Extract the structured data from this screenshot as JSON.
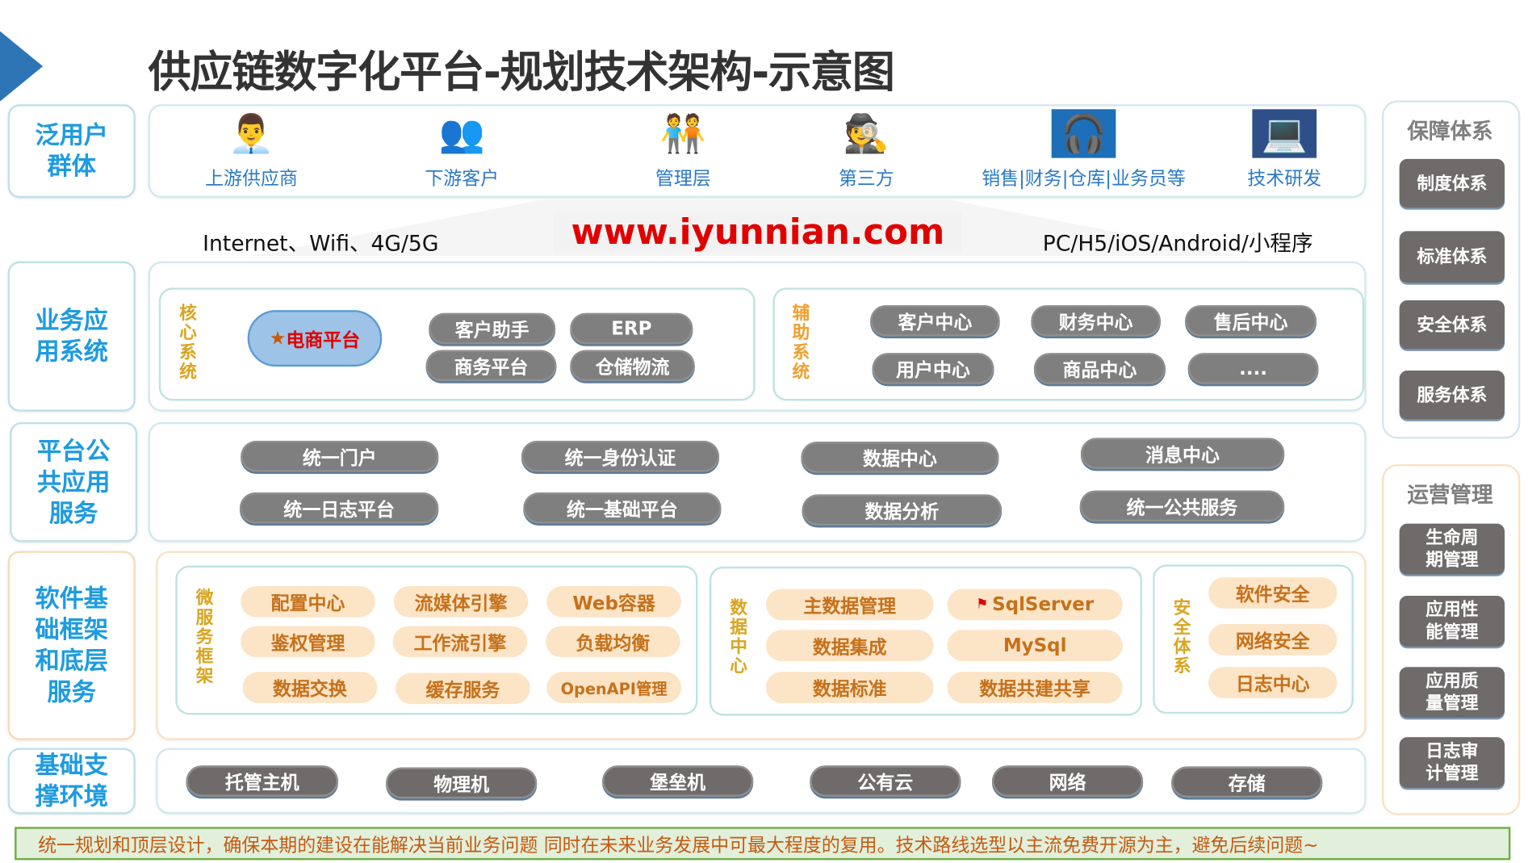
{
  "title": "供应链数字化平台-规划技术架构-示意图",
  "layers": {
    "users": "泛用户群体",
    "business": "业务应用系统",
    "platform": "平台公共应用服务",
    "software": "软件基础框架和底层服务",
    "infra": "基础支撑环境"
  },
  "users": [
    {
      "label": "上游供应商",
      "icon": "supplier-icon"
    },
    {
      "label": "下游客户",
      "icon": "customers-icon"
    },
    {
      "label": "管理层",
      "icon": "management-icon"
    },
    {
      "label": "第三方",
      "icon": "third-party-icon"
    },
    {
      "label": "销售|财务|仓库|业务员等",
      "icon": "staff-icon"
    },
    {
      "label": "技术研发",
      "icon": "tech-rd-icon"
    }
  ],
  "connect": {
    "network": "Internet、Wifi、4G/5G",
    "url": "www.iyunnian.com",
    "clients": "PC/H5/iOS/Android/小程序"
  },
  "core": {
    "label": "核心系统",
    "highlight": "电商平台",
    "items": [
      "客户助手",
      "ERP",
      "商务平台",
      "仓储物流"
    ]
  },
  "aux": {
    "label": "辅助系统",
    "items": [
      "客户中心",
      "财务中心",
      "售后中心",
      "用户中心",
      "商品中心",
      "...."
    ]
  },
  "platform": [
    "统一门户",
    "统一身份认证",
    "数据中心",
    "消息中心",
    "统一日志平台",
    "统一基础平台",
    "数据分析",
    "统一公共服务"
  ],
  "micro": {
    "label": "微服务框架",
    "items": [
      "配置中心",
      "流媒体引擎",
      "Web容器",
      "鉴权管理",
      "工作流引擎",
      "负载均衡",
      "数据交换",
      "缓存服务",
      "OpenAPI管理"
    ]
  },
  "datacenter": {
    "label": "数据中心",
    "items": [
      "主数据管理",
      "SqlServer",
      "数据集成",
      "MySql",
      "数据标准",
      "数据共建共享"
    ]
  },
  "security": {
    "label": "安全体系",
    "items": [
      "软件安全",
      "网络安全",
      "日志中心"
    ]
  },
  "infra": [
    "托管主机",
    "物理机",
    "堡垒机",
    "公有云",
    "网络",
    "存储"
  ],
  "guarantee": {
    "title": "保障体系",
    "items": [
      "制度体系",
      "标准体系",
      "安全体系",
      "服务体系"
    ]
  },
  "operations": {
    "title": "运营管理",
    "items": [
      "生命周期管理",
      "应用性能管理",
      "应用质量管理",
      "日志审计管理"
    ]
  },
  "footer": "统一规划和顶层设计，确保本期的建设在能解决当前业务问题 同时在未来业务发展中可最大程度的复用。技术路线选型以主流免费开源为主，避免后续问题~",
  "colors": {
    "layer_text": "#1e9be0",
    "pill_grey": "#7f7f7f",
    "pill_orange": "#fce4c6",
    "url_red": "#e00000",
    "footer_bg": "#e2efda"
  }
}
